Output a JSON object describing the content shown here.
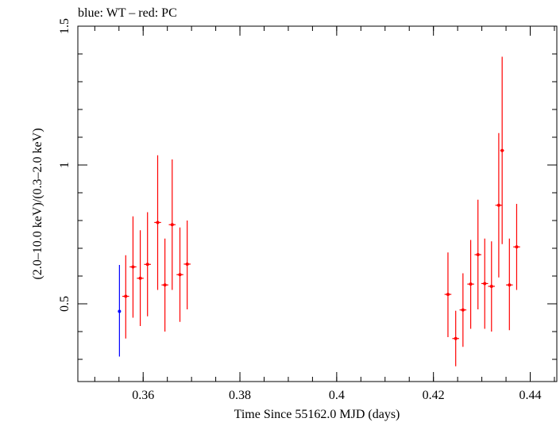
{
  "chart_data": {
    "type": "scatter",
    "title": "blue: WT – red: PC",
    "xlabel": "Time Since 55162.0 MJD (days)",
    "ylabel": "(2.0–10.0 keV)/(0.3–2.0 keV)",
    "xlim": [
      0.3465,
      0.4455
    ],
    "ylim": [
      0.22,
      1.5
    ],
    "x_ticks": [
      {
        "v": 0.36,
        "label": "0.36"
      },
      {
        "v": 0.38,
        "label": "0.38"
      },
      {
        "v": 0.4,
        "label": "0.4"
      },
      {
        "v": 0.42,
        "label": "0.42"
      },
      {
        "v": 0.44,
        "label": "0.44"
      }
    ],
    "y_ticks": [
      {
        "v": 0.5,
        "label": "0.5"
      },
      {
        "v": 1,
        "label": "1"
      },
      {
        "v": 1.5,
        "label": "1.5"
      }
    ],
    "y_minor": [
      0.3,
      0.4,
      0.6,
      0.7,
      0.8,
      0.9,
      1.1,
      1.2,
      1.3,
      1.4
    ],
    "x_minor_step": 0.005,
    "log_y": false,
    "grid": false,
    "series": [
      {
        "name": "WT",
        "color": "#0000ff",
        "points": [
          {
            "x": 0.3551,
            "y": 0.473,
            "xerr": 0.0002,
            "ylo": 0.31,
            "yhi": 0.64
          }
        ]
      },
      {
        "name": "PC",
        "color": "#ff0000",
        "points": [
          {
            "x": 0.3564,
            "y": 0.527,
            "xerr": 0.0007,
            "ylo": 0.375,
            "yhi": 0.675
          },
          {
            "x": 0.3579,
            "y": 0.633,
            "xerr": 0.0007,
            "ylo": 0.45,
            "yhi": 0.815
          },
          {
            "x": 0.3594,
            "y": 0.592,
            "xerr": 0.0007,
            "ylo": 0.42,
            "yhi": 0.765
          },
          {
            "x": 0.3609,
            "y": 0.642,
            "xerr": 0.0007,
            "ylo": 0.455,
            "yhi": 0.83
          },
          {
            "x": 0.363,
            "y": 0.793,
            "xerr": 0.0007,
            "ylo": 0.55,
            "yhi": 1.035
          },
          {
            "x": 0.3645,
            "y": 0.568,
            "xerr": 0.0007,
            "ylo": 0.4,
            "yhi": 0.735
          },
          {
            "x": 0.366,
            "y": 0.785,
            "xerr": 0.0007,
            "ylo": 0.55,
            "yhi": 1.02
          },
          {
            "x": 0.3676,
            "y": 0.605,
            "xerr": 0.0007,
            "ylo": 0.435,
            "yhi": 0.775
          },
          {
            "x": 0.3691,
            "y": 0.643,
            "xerr": 0.0007,
            "ylo": 0.48,
            "yhi": 0.8
          },
          {
            "x": 0.423,
            "y": 0.534,
            "xerr": 0.0007,
            "ylo": 0.38,
            "yhi": 0.685
          },
          {
            "x": 0.4246,
            "y": 0.375,
            "xerr": 0.0007,
            "ylo": 0.275,
            "yhi": 0.475
          },
          {
            "x": 0.4261,
            "y": 0.478,
            "xerr": 0.0007,
            "ylo": 0.345,
            "yhi": 0.61
          },
          {
            "x": 0.4277,
            "y": 0.571,
            "xerr": 0.0007,
            "ylo": 0.41,
            "yhi": 0.73
          },
          {
            "x": 0.4292,
            "y": 0.677,
            "xerr": 0.0007,
            "ylo": 0.48,
            "yhi": 0.875
          },
          {
            "x": 0.4306,
            "y": 0.573,
            "xerr": 0.0007,
            "ylo": 0.41,
            "yhi": 0.735
          },
          {
            "x": 0.432,
            "y": 0.563,
            "xerr": 0.0007,
            "ylo": 0.4,
            "yhi": 0.725
          },
          {
            "x": 0.4335,
            "y": 0.855,
            "xerr": 0.0007,
            "ylo": 0.595,
            "yhi": 1.115
          },
          {
            "x": 0.4342,
            "y": 1.052,
            "xerr": 0.0004,
            "ylo": 0.715,
            "yhi": 1.39
          },
          {
            "x": 0.4357,
            "y": 0.568,
            "xerr": 0.0007,
            "ylo": 0.405,
            "yhi": 0.735
          },
          {
            "x": 0.4372,
            "y": 0.705,
            "xerr": 0.0007,
            "ylo": 0.55,
            "yhi": 0.86
          }
        ]
      }
    ]
  }
}
